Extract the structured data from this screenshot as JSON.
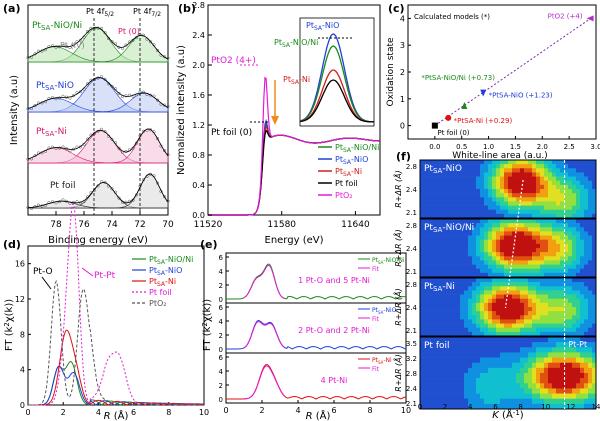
{
  "panel_labels": {
    "a": "(a)",
    "b": "(b)",
    "c": "(c)",
    "d": "(d)",
    "e": "(e)",
    "f": "(f)"
  },
  "chart_data": [
    {
      "panel": "a",
      "type": "line",
      "title": "",
      "xlabel": "Binding energy (eV)",
      "ylabel": "Intensity (a.u)",
      "xlim": [
        80,
        70
      ],
      "xticks": [
        "78",
        "76",
        "74",
        "72",
        "70"
      ],
      "peak_labels": [
        "Pt 4f5/2",
        "Pt 4f7/2",
        "Pt (IV)",
        "Pt (0)"
      ],
      "series": [
        {
          "name": "PtSA-NiO/Ni",
          "color": "#1a8a1a",
          "fill": "#b9e3b2",
          "peaks": [
            {
              "c": 75.1,
              "a": 1.0,
              "w": 1.0
            },
            {
              "c": 71.9,
              "a": 0.78,
              "w": 0.9
            },
            {
              "c": 78.1,
              "a": 0.45,
              "w": 1.2
            }
          ]
        },
        {
          "name": "PtSA-NiO",
          "color": "#1f3fd6",
          "fill": "#b8c8f2",
          "peaks": [
            {
              "c": 74.9,
              "a": 1.0,
              "w": 1.1
            },
            {
              "c": 71.7,
              "a": 0.55,
              "w": 1.0
            },
            {
              "c": 78.0,
              "a": 0.4,
              "w": 1.2
            }
          ]
        },
        {
          "name": "PtSA-Ni",
          "color": "#d4186b",
          "fill": "#f2bfd8",
          "peaks": [
            {
              "c": 74.8,
              "a": 0.95,
              "w": 1.0
            },
            {
              "c": 71.4,
              "a": 1.0,
              "w": 0.8
            },
            {
              "c": 78.0,
              "a": 0.45,
              "w": 1.2
            }
          ]
        },
        {
          "name": "Pt foil",
          "color": "#222222",
          "fill": "#d8d8d8",
          "peaks": [
            {
              "c": 74.6,
              "a": 0.75,
              "w": 0.8
            },
            {
              "c": 71.3,
              "a": 1.0,
              "w": 0.7
            },
            {
              "c": 77.6,
              "a": 0.2,
              "w": 1.0
            }
          ]
        }
      ]
    },
    {
      "panel": "b",
      "type": "line",
      "xlabel": "Energy (eV)",
      "ylabel": "Normalized intensity (a.u)",
      "xlim": [
        11520,
        11660
      ],
      "ylim": [
        0.0,
        2.8
      ],
      "xticks": [
        "11520",
        "11580",
        "11640"
      ],
      "yticks": [
        "0.0",
        "0.4",
        "0.8",
        "1.2",
        "1.6",
        "2.0",
        "2.4",
        "2.8"
      ],
      "annotations": [
        "PtO2 (4+)",
        "Pt foil (0)",
        "PtSA-NiO",
        "PtSA-NiO/Ni",
        "PtSA-Ni"
      ],
      "legend": [
        "PtSA-NiO/Ni",
        "PtSA-NiO",
        "PtSA-Ni",
        "Pt foil",
        "PtO2"
      ],
      "series": [
        {
          "name": "PtSA-NiO/Ni",
          "color": "#1a8a1a",
          "wl": 1.34
        },
        {
          "name": "PtSA-NiO",
          "color": "#1f3fd6",
          "wl": 1.38
        },
        {
          "name": "PtSA-Ni",
          "color": "#d41e1e",
          "wl": 1.3
        },
        {
          "name": "Pt foil",
          "color": "#000000",
          "wl": 1.24
        },
        {
          "name": "PtO2",
          "color": "#e41ad6",
          "wl": 2.0
        }
      ]
    },
    {
      "panel": "c",
      "type": "scatter",
      "title": "Calculated models (*)",
      "xlabel": "White-line area (a.u.)",
      "ylabel": "Oxidation state",
      "xlim": [
        -0.5,
        3.0
      ],
      "ylim": [
        -0.5,
        4.5
      ],
      "xticks": [
        "0.0",
        "0.5",
        "1.0",
        "1.5",
        "2.0",
        "2.5",
        "3.0"
      ],
      "yticks": [
        "0",
        "1",
        "2",
        "3",
        "4"
      ],
      "points": [
        {
          "label": "Pt foil (0)",
          "x": 0.0,
          "y": 0.0,
          "color": "#000000",
          "marker": "square"
        },
        {
          "label": "*PtSA-Ni (+0.29)",
          "x": 0.25,
          "y": 0.29,
          "color": "#e01010",
          "marker": "circle"
        },
        {
          "label": "*PtSA-NiO/Ni (+0.73)",
          "x": 0.55,
          "y": 0.73,
          "color": "#1a8a1a",
          "marker": "triangle-up"
        },
        {
          "label": "*PtSA-NiO (+1.23)",
          "x": 0.9,
          "y": 1.23,
          "color": "#1f3fd6",
          "marker": "triangle-down"
        },
        {
          "label": "PtO2 (+4)",
          "x": 2.9,
          "y": 4.0,
          "color": "#b030c8",
          "marker": "triangle-left"
        }
      ]
    },
    {
      "panel": "d",
      "type": "line",
      "xlabel": "R (Å)",
      "ylabel": "FT (k²χ(k))",
      "xlim": [
        0,
        10
      ],
      "ylim": [
        0,
        18
      ],
      "xticks": [
        "0",
        "2",
        "4",
        "6",
        "8",
        "10"
      ],
      "yticks": [
        "0",
        "4",
        "8",
        "12",
        "16"
      ],
      "annotations": [
        "Pt-O",
        "Pt-Pt"
      ],
      "legend": [
        "PtSA-NiO/Ni",
        "PtSA-NiO",
        "PtSA-Ni",
        "Pt foil",
        "PtO2"
      ],
      "series": [
        {
          "name": "PtSA-NiO/Ni",
          "color": "#1a8a1a",
          "dash": "",
          "peaks": [
            {
              "c": 1.7,
              "a": 4.0,
              "w": 0.28
            },
            {
              "c": 2.45,
              "a": 4.8,
              "w": 0.32
            }
          ]
        },
        {
          "name": "PtSA-NiO",
          "color": "#1f3fd6",
          "dash": "",
          "peaks": [
            {
              "c": 1.75,
              "a": 4.3,
              "w": 0.3
            },
            {
              "c": 2.6,
              "a": 3.6,
              "w": 0.32
            }
          ]
        },
        {
          "name": "PtSA-Ni",
          "color": "#e01010",
          "dash": "",
          "peaks": [
            {
              "c": 2.15,
              "a": 8.0,
              "w": 0.35
            },
            {
              "c": 2.75,
              "a": 3.0,
              "w": 0.3
            }
          ]
        },
        {
          "name": "Pt foil",
          "color": "#e41ad6",
          "dash": "2,2",
          "peaks": [
            {
              "c": 2.3,
              "a": 10.0,
              "w": 0.35
            },
            {
              "c": 2.65,
              "a": 16.0,
              "w": 0.28
            },
            {
              "c": 4.5,
              "a": 4.0,
              "w": 0.35
            },
            {
              "c": 5.2,
              "a": 5.0,
              "w": 0.35
            }
          ]
        },
        {
          "name": "PtO2",
          "color": "#555555",
          "dash": "3,2",
          "peaks": [
            {
              "c": 1.6,
              "a": 14.0,
              "w": 0.28
            },
            {
              "c": 3.1,
              "a": 12.0,
              "w": 0.3
            },
            {
              "c": 3.6,
              "a": 4.0,
              "w": 0.3
            }
          ]
        }
      ]
    },
    {
      "panel": "e",
      "type": "line",
      "xlabel": "R (Å)",
      "ylabel": "FT (k²χ(k))",
      "xlim": [
        0,
        10
      ],
      "xticks": [
        "0",
        "2",
        "4",
        "6",
        "8",
        "10"
      ],
      "yticks": [
        "0",
        "2",
        "4",
        "6"
      ],
      "subplots": [
        {
          "legend": [
            "PtSA-NiO/Ni",
            "Fit"
          ],
          "color": "#1a8a1a",
          "annotation": "1 Pt-O and 5 Pt-Ni",
          "peaks": [
            {
              "c": 1.7,
              "a": 2.8,
              "w": 0.3
            },
            {
              "c": 2.4,
              "a": 4.8,
              "w": 0.3
            }
          ]
        },
        {
          "legend": [
            "PtSA-NiO",
            "Fit"
          ],
          "color": "#1f3fd6",
          "annotation": "2 Pt-O and 2 Pt-Ni",
          "peaks": [
            {
              "c": 1.75,
              "a": 3.8,
              "w": 0.3
            },
            {
              "c": 2.5,
              "a": 3.6,
              "w": 0.32
            }
          ]
        },
        {
          "legend": [
            "PtSA-Ni",
            "Fit"
          ],
          "color": "#e01010",
          "annotation": "4 Pt-Ni",
          "peaks": [
            {
              "c": 2.2,
              "a": 4.6,
              "w": 0.35
            },
            {
              "c": 2.75,
              "a": 1.5,
              "w": 0.3
            }
          ]
        }
      ]
    },
    {
      "panel": "f",
      "type": "heatmap",
      "xlabel": "K (Å⁻¹)",
      "ylabel": "R+ΔR (Å)",
      "xlim": [
        0,
        14
      ],
      "xticks": [
        "0",
        "2",
        "4",
        "6",
        "8",
        "10",
        "12",
        "14"
      ],
      "yticks": [
        "2.1",
        "2.4",
        "2.8"
      ],
      "yticks_bottom": [
        "2.1",
        "2.4",
        "2.8",
        "3.2",
        "3.5"
      ],
      "annotation": "Pt-Pt",
      "subplots": [
        {
          "label": "PtSA-NiO",
          "spots": [
            {
              "k": 8.0,
              "r": 0.62,
              "a": 1.0,
              "sk": 1.6,
              "sr": 0.3
            },
            {
              "k": 11.5,
              "r": 0.3,
              "a": 0.45,
              "sk": 1.5,
              "sr": 0.3
            }
          ]
        },
        {
          "label": "PtSA-NiO/Ni",
          "spots": [
            {
              "k": 7.5,
              "r": 0.55,
              "a": 1.0,
              "sk": 1.7,
              "sr": 0.3
            },
            {
              "k": 11.0,
              "r": 0.5,
              "a": 0.5,
              "sk": 1.5,
              "sr": 0.3
            }
          ]
        },
        {
          "label": "PtSA-Ni",
          "spots": [
            {
              "k": 7.0,
              "r": 0.48,
              "a": 1.0,
              "sk": 1.8,
              "sr": 0.3
            },
            {
              "k": 11.5,
              "r": 0.45,
              "a": 0.45,
              "sk": 1.5,
              "sr": 0.3
            }
          ]
        },
        {
          "label": "Pt foil",
          "spots": [
            {
              "k": 11.5,
              "r": 0.45,
              "a": 1.0,
              "sk": 2.2,
              "sr": 0.25
            },
            {
              "k": 5.5,
              "r": 0.3,
              "a": 0.25,
              "sk": 1.5,
              "sr": 0.3
            }
          ]
        }
      ]
    }
  ]
}
